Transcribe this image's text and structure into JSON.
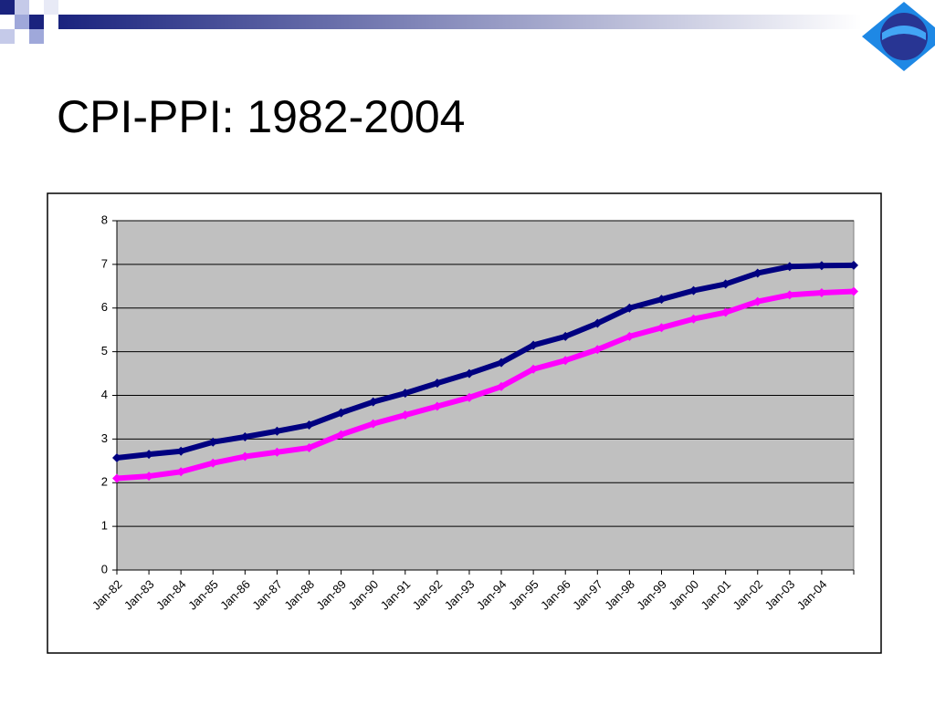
{
  "chart_data": {
    "type": "line",
    "title": "CPI-PPI: 1982-2004",
    "categories": [
      "Jan-82",
      "Jan-83",
      "Jan-84",
      "Jan-85",
      "Jan-86",
      "Jan-87",
      "Jan-88",
      "Jan-89",
      "Jan-90",
      "Jan-91",
      "Jan-92",
      "Jan-93",
      "Jan-94",
      "Jan-95",
      "Jan-96",
      "Jan-97",
      "Jan-98",
      "Jan-99",
      "Jan-00",
      "Jan-01",
      "Jan-02",
      "Jan-03",
      "Jan-04",
      null
    ],
    "series": [
      {
        "color": "#000080",
        "values": [
          2.57,
          2.65,
          2.72,
          2.93,
          3.05,
          3.18,
          3.32,
          3.6,
          3.85,
          4.05,
          4.28,
          4.5,
          4.75,
          5.15,
          5.35,
          5.65,
          6.0,
          6.2,
          6.4,
          6.55,
          6.8,
          6.95,
          6.97,
          6.98
        ]
      },
      {
        "color": "#ff00ff",
        "values": [
          2.1,
          2.15,
          2.25,
          2.45,
          2.6,
          2.7,
          2.8,
          3.1,
          3.35,
          3.55,
          3.75,
          3.95,
          4.2,
          4.6,
          4.8,
          5.05,
          5.35,
          5.55,
          5.75,
          5.9,
          6.15,
          6.3,
          6.35,
          6.38
        ]
      }
    ],
    "ylim": [
      0,
      8
    ],
    "yticks": [
      0,
      1,
      2,
      3,
      4,
      5,
      6,
      7,
      8
    ],
    "grid": true
  }
}
